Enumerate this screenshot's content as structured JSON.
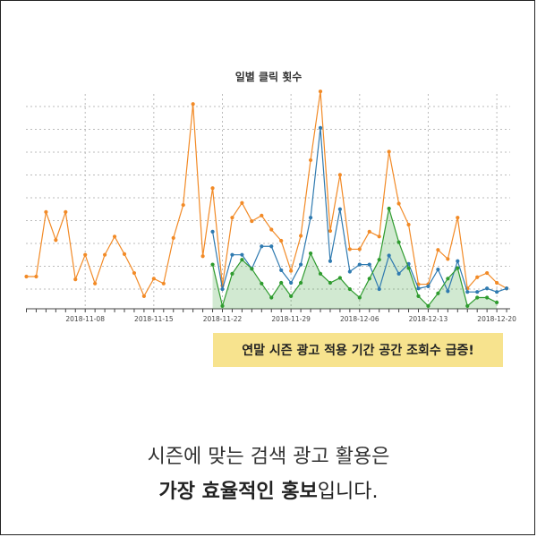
{
  "chart_data": {
    "type": "line",
    "title": "일별 클릭 횟수",
    "xlabel": "",
    "ylabel": "",
    "x_ticks": [
      "2018-11-08",
      "2018-11-15",
      "2018-11-22",
      "2018-11-29",
      "2018-12-06",
      "2018-12-13",
      "2018-12-20"
    ],
    "ylim": [
      0,
      300
    ],
    "grid": true,
    "series": [
      {
        "color": "#f28a26",
        "values": [
          [
            0,
            46
          ],
          [
            1,
            46
          ],
          [
            2,
            138
          ],
          [
            3,
            98
          ],
          [
            4,
            138
          ],
          [
            5,
            42
          ],
          [
            6,
            77
          ],
          [
            7,
            36
          ],
          [
            8,
            77
          ],
          [
            9,
            103
          ],
          [
            10,
            78
          ],
          [
            11,
            51
          ],
          [
            12,
            18
          ],
          [
            13,
            43
          ],
          [
            14,
            36
          ],
          [
            15,
            101
          ],
          [
            16,
            148
          ],
          [
            17,
            292
          ],
          [
            18,
            75
          ],
          [
            19,
            172
          ],
          [
            20,
            33
          ],
          [
            21,
            130
          ],
          [
            22,
            151
          ],
          [
            23,
            125
          ],
          [
            24,
            133
          ],
          [
            25,
            113
          ],
          [
            26,
            97
          ],
          [
            27,
            54
          ],
          [
            28,
            104
          ],
          [
            29,
            212
          ],
          [
            30,
            310
          ],
          [
            31,
            111
          ],
          [
            32,
            191
          ],
          [
            33,
            85
          ],
          [
            34,
            85
          ],
          [
            35,
            110
          ],
          [
            36,
            103
          ],
          [
            37,
            224
          ],
          [
            38,
            150
          ],
          [
            39,
            120
          ],
          [
            40,
            35
          ],
          [
            41,
            35
          ],
          [
            42,
            84
          ],
          [
            43,
            71
          ],
          [
            44,
            130
          ],
          [
            45,
            29
          ],
          [
            46,
            45
          ],
          [
            47,
            51
          ],
          [
            48,
            37
          ],
          [
            49,
            29
          ]
        ]
      },
      {
        "color": "#2f7ab0",
        "values": [
          [
            19,
            110
          ],
          [
            20,
            28
          ],
          [
            21,
            77
          ],
          [
            22,
            77
          ],
          [
            23,
            57
          ],
          [
            24,
            89
          ],
          [
            25,
            89
          ],
          [
            26,
            55
          ],
          [
            27,
            37
          ],
          [
            28,
            63
          ],
          [
            29,
            130
          ],
          [
            30,
            258
          ],
          [
            31,
            68
          ],
          [
            32,
            142
          ],
          [
            33,
            53
          ],
          [
            34,
            63
          ],
          [
            35,
            63
          ],
          [
            36,
            28
          ],
          [
            37,
            76
          ],
          [
            38,
            50
          ],
          [
            39,
            64
          ],
          [
            40,
            29
          ],
          [
            41,
            32
          ],
          [
            42,
            56
          ],
          [
            43,
            25
          ],
          [
            44,
            68
          ],
          [
            45,
            24
          ],
          [
            46,
            24
          ],
          [
            47,
            29
          ],
          [
            48,
            24
          ],
          [
            49,
            29
          ]
        ]
      },
      {
        "color": "#2e9b2e",
        "values": [
          [
            19,
            63
          ],
          [
            20,
            4
          ],
          [
            21,
            50
          ],
          [
            22,
            70
          ],
          [
            23,
            57
          ],
          [
            24,
            36
          ],
          [
            25,
            16
          ],
          [
            26,
            37
          ],
          [
            27,
            18
          ],
          [
            28,
            37
          ],
          [
            29,
            79
          ],
          [
            30,
            50
          ],
          [
            31,
            37
          ],
          [
            32,
            44
          ],
          [
            33,
            28
          ],
          [
            34,
            16
          ],
          [
            35,
            43
          ],
          [
            36,
            70
          ],
          [
            37,
            143
          ],
          [
            38,
            95
          ],
          [
            39,
            58
          ],
          [
            40,
            18
          ],
          [
            41,
            4
          ],
          [
            42,
            22
          ],
          [
            43,
            43
          ],
          [
            44,
            58
          ],
          [
            45,
            4
          ],
          [
            46,
            16
          ],
          [
            47,
            16
          ],
          [
            48,
            9
          ]
        ]
      }
    ]
  },
  "callout": "연말 시즌 광고 적용 기간 공간 조회수 급증!",
  "caption": {
    "line1": "시즌에 맞는 검색 광고 활용은",
    "line2_bold": "가장 효율적인 홍보",
    "line2_rest": "입니다."
  }
}
